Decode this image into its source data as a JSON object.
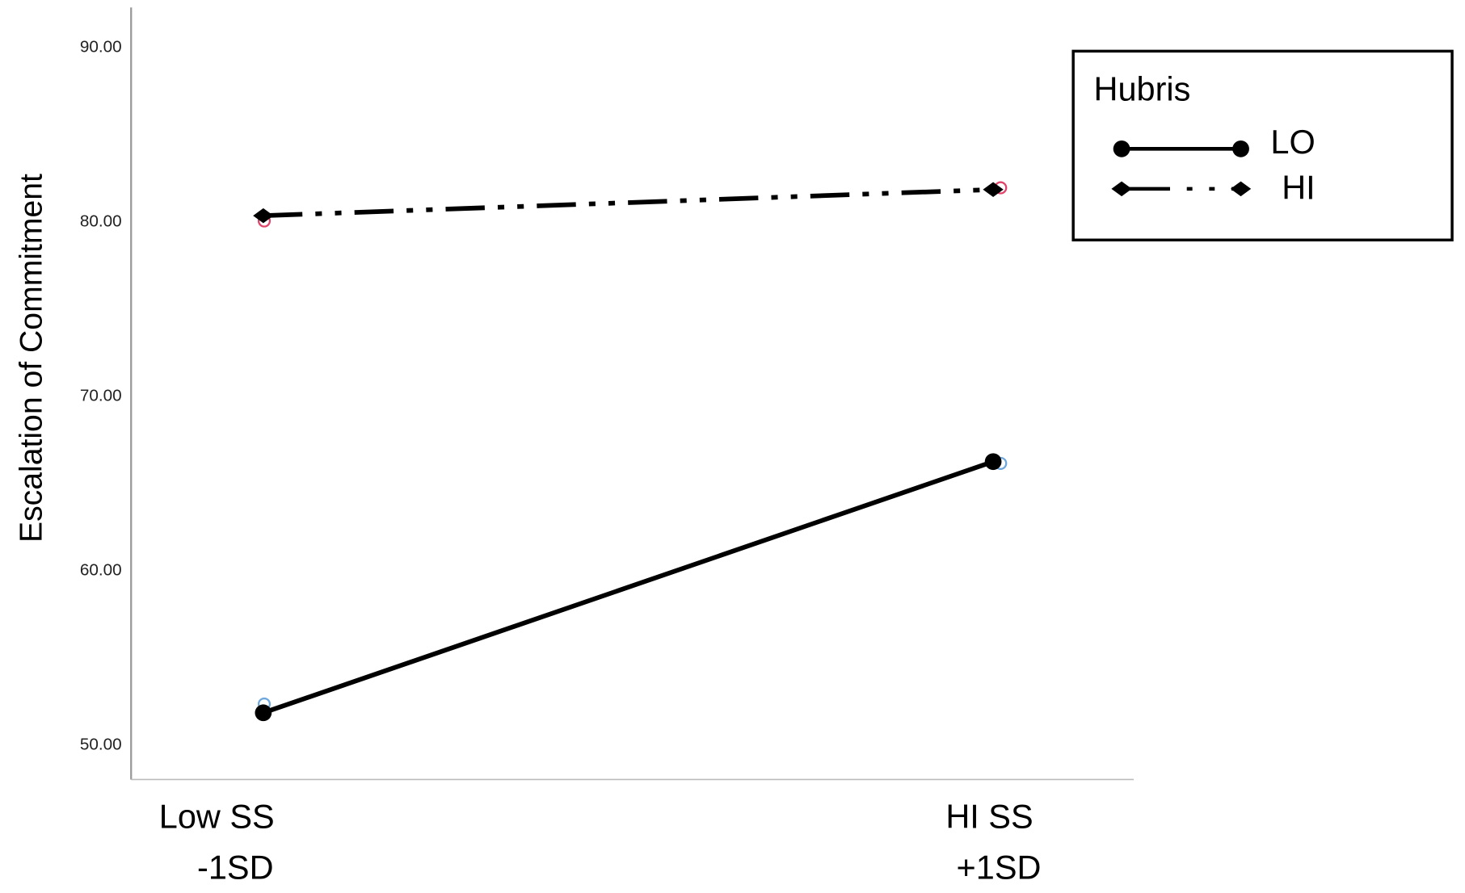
{
  "chart_data": {
    "type": "line",
    "title": "",
    "ylabel": "Escalation of Commitment",
    "xlabel": "",
    "categories": [
      "Low SS\n-1SD",
      "HI SS\n+1SD"
    ],
    "category_lines": [
      [
        "Low SS",
        "-1SD"
      ],
      [
        "HI SS",
        "+1SD"
      ]
    ],
    "ylim": [
      48,
      92
    ],
    "yticks": [
      "50.00",
      "60.00",
      "70.00",
      "80.00",
      "90.00"
    ],
    "grid": false,
    "legend": {
      "title": "Hubris",
      "placement": "top-right"
    },
    "series": [
      {
        "name": "LO",
        "values": [
          51.8,
          66.2
        ],
        "style": "solid",
        "marker": "circle",
        "color": "#000000",
        "observed": [
          52.3,
          66.1
        ],
        "observed_color": "#6fa8dc"
      },
      {
        "name": "HI",
        "values": [
          80.3,
          81.8
        ],
        "style": "dash-dot-dot",
        "marker": "diamond",
        "color": "#000000",
        "observed": [
          80.0,
          81.9
        ],
        "observed_color": "#e0446a"
      }
    ]
  }
}
